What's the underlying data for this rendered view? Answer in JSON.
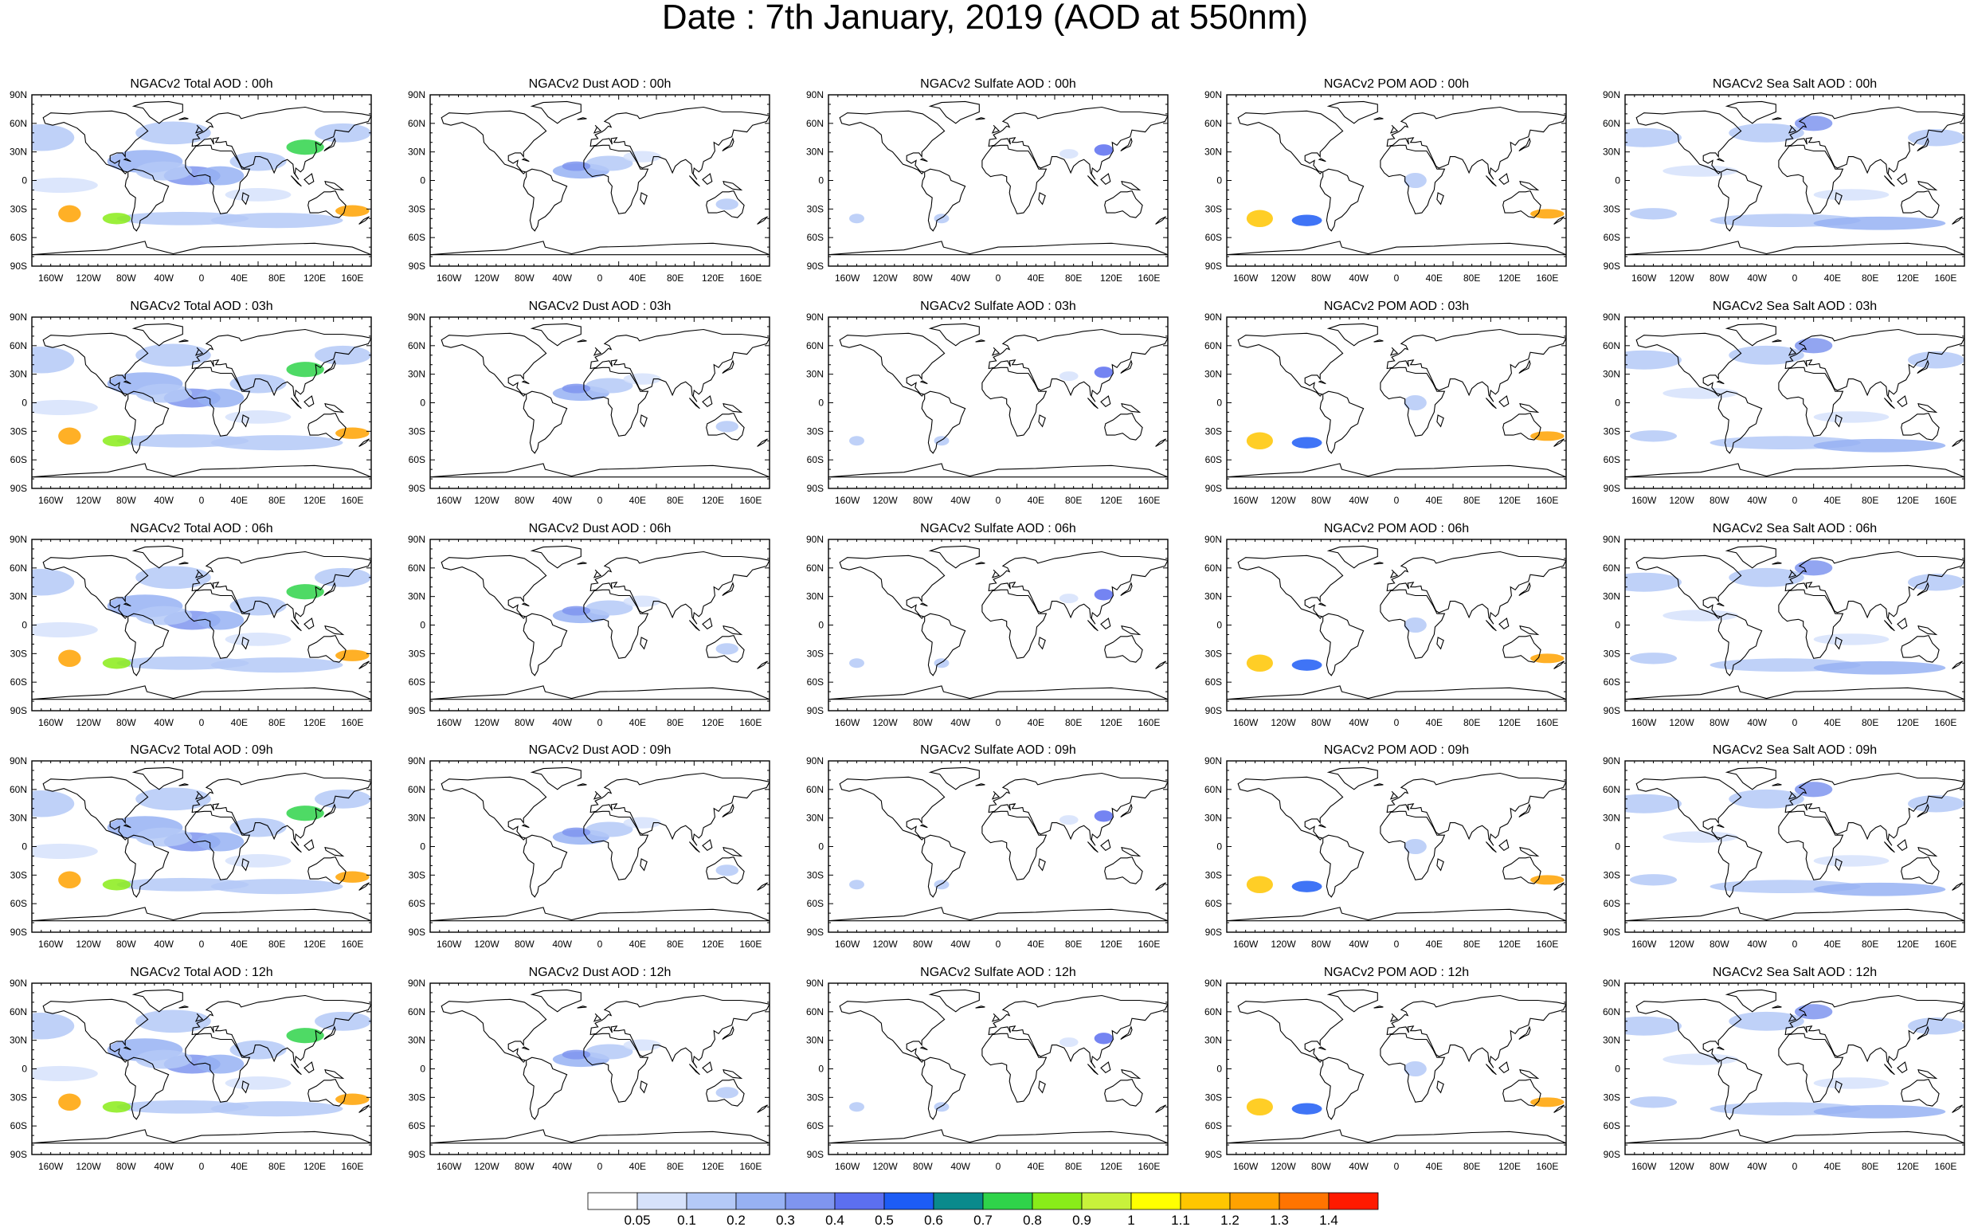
{
  "title": "Date : 7th January, 2019 (AOD at 550nm)",
  "lat_labels": [
    "90N",
    "60N",
    "30N",
    "0",
    "30S",
    "60S",
    "90S"
  ],
  "lon_labels": [
    "160W",
    "120W",
    "80W",
    "40W",
    "0",
    "40E",
    "80E",
    "120E",
    "160E"
  ],
  "panels": [
    [
      "NGACv2 Total AOD : 00h",
      "NGACv2 Dust AOD : 00h",
      "NGACv2 Sulfate AOD : 00h",
      "NGACv2 POM AOD : 00h",
      "NGACv2 Sea Salt AOD : 00h"
    ],
    [
      "NGACv2 Total AOD : 03h",
      "NGACv2 Dust AOD : 03h",
      "NGACv2 Sulfate AOD : 03h",
      "NGACv2 POM AOD : 03h",
      "NGACv2 Sea Salt AOD : 03h"
    ],
    [
      "NGACv2 Total AOD : 06h",
      "NGACv2 Dust AOD : 06h",
      "NGACv2 Sulfate AOD : 06h",
      "NGACv2 POM AOD : 06h",
      "NGACv2 Sea Salt AOD : 06h"
    ],
    [
      "NGACv2 Total AOD : 09h",
      "NGACv2 Dust AOD : 09h",
      "NGACv2 Sulfate AOD : 09h",
      "NGACv2 POM AOD : 09h",
      "NGACv2 Sea Salt  AOD : 09h"
    ],
    [
      "NGACv2 Total AOD  : 12h",
      "NGACv2 Dust AOD : 12h",
      "NGACv2 Sulfate AOD : 12h",
      "NGACv2 POM  AOD : 12h",
      "NGACv2 Sea Salt  AOD : 12h"
    ]
  ],
  "colorbar": {
    "labels": [
      "0.05",
      "0.1",
      "0.2",
      "0.3",
      "0.4",
      "0.5",
      "0.6",
      "0.7",
      "0.8",
      "0.9",
      "1",
      "1.1",
      "1.2",
      "1.3",
      "1.4"
    ],
    "colors": [
      "#ffffff",
      "#d6e2fb",
      "#b4c9f7",
      "#97b1f3",
      "#7f95ef",
      "#5c6ff0",
      "#1d5cf5",
      "#0a8a8c",
      "#2fd34a",
      "#89ec19",
      "#c8f23b",
      "#ffff00",
      "#ffc600",
      "#ffa200",
      "#ff7400",
      "#ff1a00"
    ]
  }
}
